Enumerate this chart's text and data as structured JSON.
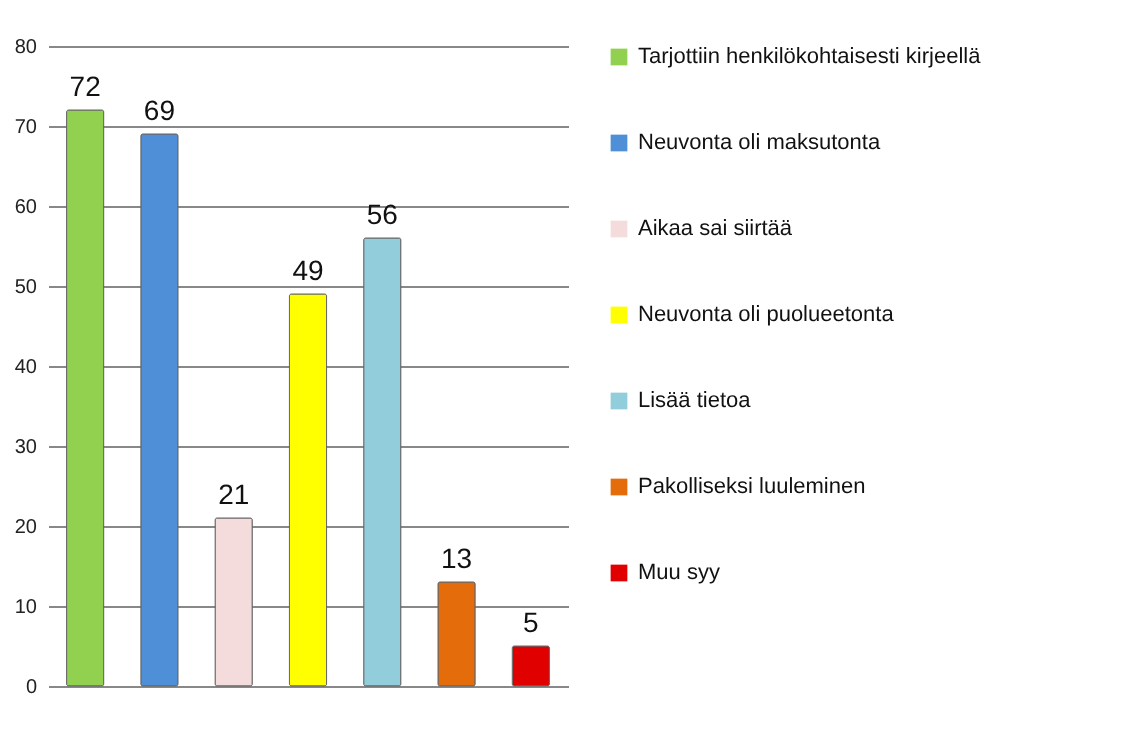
{
  "chart_data": {
    "type": "bar",
    "categories": [
      null,
      null,
      null,
      null,
      null,
      null,
      null
    ],
    "series": [
      {
        "name": "Tarjottiin henkilökohtaisesti kirjeellä",
        "color": "#92d050",
        "values": [
          72,
          null,
          null,
          null,
          null,
          null,
          null
        ]
      },
      {
        "name": "Neuvonta oli maksutonta",
        "color": "#4f8fd8",
        "values": [
          null,
          69,
          null,
          null,
          null,
          null,
          null
        ]
      },
      {
        "name": "Aikaa sai siirtää",
        "color": "#f5dcdc",
        "values": [
          null,
          null,
          21,
          null,
          null,
          null,
          null
        ]
      },
      {
        "name": "Neuvonta oli puolueetonta",
        "color": "#ffff00",
        "values": [
          null,
          null,
          null,
          49,
          null,
          null,
          null
        ]
      },
      {
        "name": "Lisää tietoa",
        "color": "#92cddc",
        "values": [
          null,
          null,
          null,
          null,
          56,
          null,
          null
        ]
      },
      {
        "name": "Pakolliseksi luuleminen",
        "color": "#e46c0a",
        "values": [
          null,
          null,
          null,
          null,
          null,
          13,
          null
        ]
      },
      {
        "name": "Muu syy",
        "color": "#e00000",
        "values": [
          null,
          null,
          null,
          null,
          null,
          null,
          5
        ]
      }
    ],
    "ylim": [
      0,
      80
    ],
    "yticks": [
      0,
      10,
      20,
      30,
      40,
      50,
      60,
      70,
      80
    ],
    "grid": "y",
    "legend": "right",
    "data_labels": true,
    "tick_labels": "y"
  }
}
